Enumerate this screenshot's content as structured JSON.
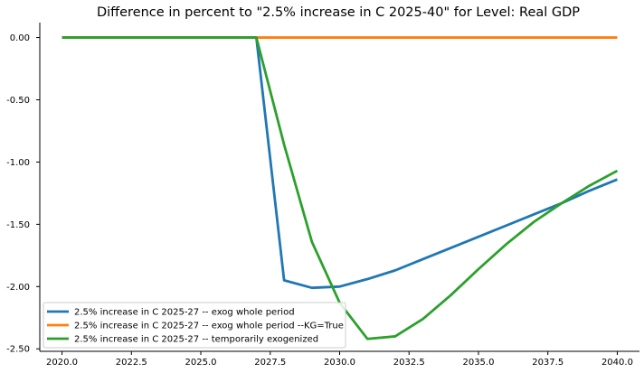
{
  "chart_data": {
    "type": "line",
    "title": "Difference in percent to \"2.5% increase in C 2025-40\" for Level: Real GDP",
    "xlabel": "",
    "ylabel": "",
    "xlim": [
      2019.2,
      2040.8
    ],
    "ylim": [
      -2.52,
      0.12
    ],
    "x_ticks": [
      2020.0,
      2022.5,
      2025.0,
      2027.5,
      2030.0,
      2032.5,
      2035.0,
      2037.5,
      2040.0
    ],
    "x_tick_labels": [
      "2020.0",
      "2022.5",
      "2025.0",
      "2027.5",
      "2030.0",
      "2032.5",
      "2035.0",
      "2037.5",
      "2040.0"
    ],
    "y_ticks": [
      0.0,
      -0.5,
      -1.0,
      -1.5,
      -2.0,
      -2.5
    ],
    "y_tick_labels": [
      "0.00",
      "-0.50",
      "-1.00",
      "-1.50",
      "-2.00",
      "-2.50"
    ],
    "grid": false,
    "legend_position": "lower-left",
    "x": [
      2020,
      2021,
      2022,
      2023,
      2024,
      2025,
      2026,
      2027,
      2028,
      2029,
      2030,
      2031,
      2032,
      2033,
      2034,
      2035,
      2036,
      2037,
      2038,
      2039,
      2040
    ],
    "series": [
      {
        "name": "2.5% increase in C 2025-27 -- exog whole period",
        "color": "#1f77b4",
        "values": [
          0,
          0,
          0,
          0,
          0,
          0,
          0,
          0,
          -1.95,
          -2.01,
          -2.0,
          -1.94,
          -1.87,
          -1.78,
          -1.69,
          -1.6,
          -1.51,
          -1.42,
          -1.33,
          -1.23,
          -1.14
        ]
      },
      {
        "name": "2.5% increase in C 2025-27 -- exog whole period --KG=True",
        "color": "#ff7f0e",
        "values": [
          0,
          0,
          0,
          0,
          0,
          0,
          0,
          0,
          0,
          0,
          0,
          0,
          0,
          0,
          0,
          0,
          0,
          0,
          0,
          0,
          0
        ]
      },
      {
        "name": "2.5% increase in C 2025-27 -- temporarily exogenized",
        "color": "#2ca02c",
        "values": [
          0,
          0,
          0,
          0,
          0,
          0,
          0,
          0,
          -0.86,
          -1.64,
          -2.13,
          -2.42,
          -2.4,
          -2.26,
          -2.07,
          -1.86,
          -1.66,
          -1.48,
          -1.33,
          -1.19,
          -1.07
        ]
      }
    ]
  }
}
